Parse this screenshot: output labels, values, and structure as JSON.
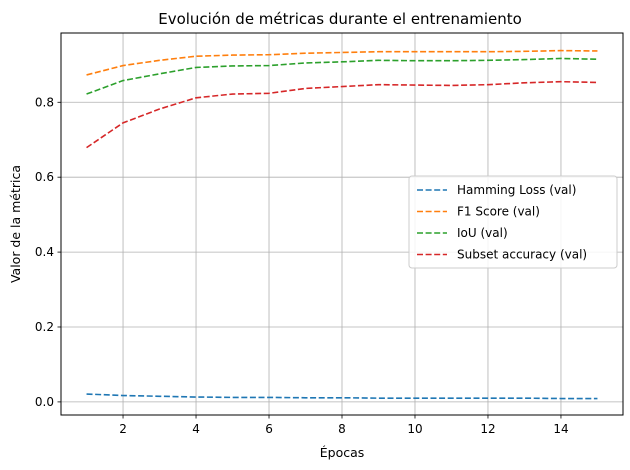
{
  "chart_data": {
    "type": "line",
    "title": "Evolución de métricas durante el entrenamiento",
    "xlabel": "Épocas",
    "ylabel": "Valor de la métrica",
    "x": [
      1,
      2,
      3,
      4,
      5,
      6,
      7,
      8,
      9,
      10,
      11,
      12,
      13,
      14,
      15
    ],
    "xlim": [
      0.3,
      15.7
    ],
    "ylim": [
      -0.035,
      0.985
    ],
    "xticks": [
      2,
      4,
      6,
      8,
      10,
      12,
      14
    ],
    "yticks": [
      0.0,
      0.2,
      0.4,
      0.6,
      0.8
    ],
    "xtick_labels": [
      "2",
      "4",
      "6",
      "8",
      "10",
      "12",
      "14"
    ],
    "ytick_labels": [
      "0.0",
      "0.2",
      "0.4",
      "0.6",
      "0.8"
    ],
    "grid": true,
    "legend_position": "center-right",
    "series": [
      {
        "name": "Hamming Loss (val)",
        "color": "#1f77b4",
        "values": [
          0.021,
          0.017,
          0.015,
          0.013,
          0.012,
          0.012,
          0.011,
          0.011,
          0.01,
          0.01,
          0.01,
          0.01,
          0.01,
          0.009,
          0.009
        ]
      },
      {
        "name": "F1 Score (val)",
        "color": "#ff7f0e",
        "values": [
          0.873,
          0.898,
          0.912,
          0.923,
          0.926,
          0.927,
          0.931,
          0.933,
          0.935,
          0.935,
          0.935,
          0.935,
          0.936,
          0.938,
          0.937
        ]
      },
      {
        "name": "IoU (val)",
        "color": "#2ca02c",
        "values": [
          0.822,
          0.858,
          0.876,
          0.893,
          0.897,
          0.898,
          0.905,
          0.908,
          0.912,
          0.911,
          0.911,
          0.912,
          0.914,
          0.917,
          0.915
        ]
      },
      {
        "name": "Subset accuracy (val)",
        "color": "#d62728",
        "values": [
          0.679,
          0.745,
          0.782,
          0.812,
          0.822,
          0.824,
          0.837,
          0.842,
          0.847,
          0.846,
          0.845,
          0.847,
          0.852,
          0.855,
          0.853
        ]
      }
    ]
  }
}
